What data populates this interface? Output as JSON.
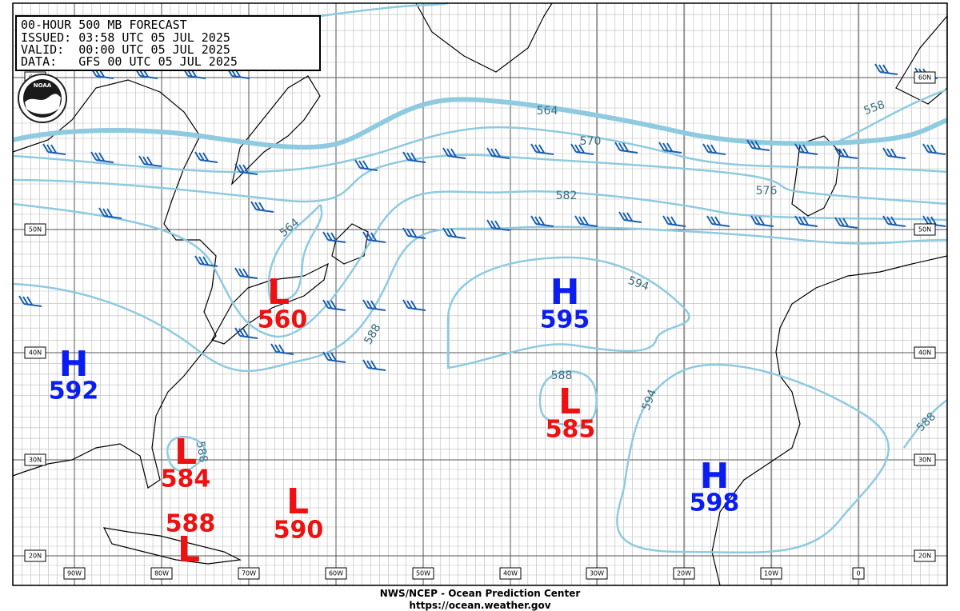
{
  "header": {
    "lines": [
      "00-HOUR 500 MB FORECAST",
      "ISSUED: 03:58 UTC 05 JUL 2025",
      "VALID:  00:00 UTC 05 JUL 2025",
      "DATA:   GFS 00 UTC 05 JUL 2025"
    ]
  },
  "logo": "NOAA",
  "latitude_labels": [
    "60N",
    "50N",
    "40N",
    "30N",
    "20N"
  ],
  "longitude_labels": [
    "90W",
    "80W",
    "70W",
    "60W",
    "50W",
    "40W",
    "30W",
    "20W",
    "10W",
    "0"
  ],
  "centers": [
    {
      "letter": "H",
      "value": "592"
    },
    {
      "letter": "L",
      "value": "560"
    },
    {
      "letter": "H",
      "value": "595"
    },
    {
      "letter": "L",
      "value": "585"
    },
    {
      "letter": "L",
      "value": "584"
    },
    {
      "letter": "L",
      "value": "588"
    },
    {
      "letter": "L",
      "value": "590"
    },
    {
      "letter": "H",
      "value": "598"
    }
  ],
  "contour_labels": [
    "564",
    "570",
    "576",
    "582",
    "588",
    "594",
    "558",
    "564",
    "588",
    "588",
    "594",
    "588"
  ],
  "footer": {
    "line1": "NWS/NCEP - Ocean Prediction Center",
    "line2": "https://ocean.weather.gov"
  }
}
